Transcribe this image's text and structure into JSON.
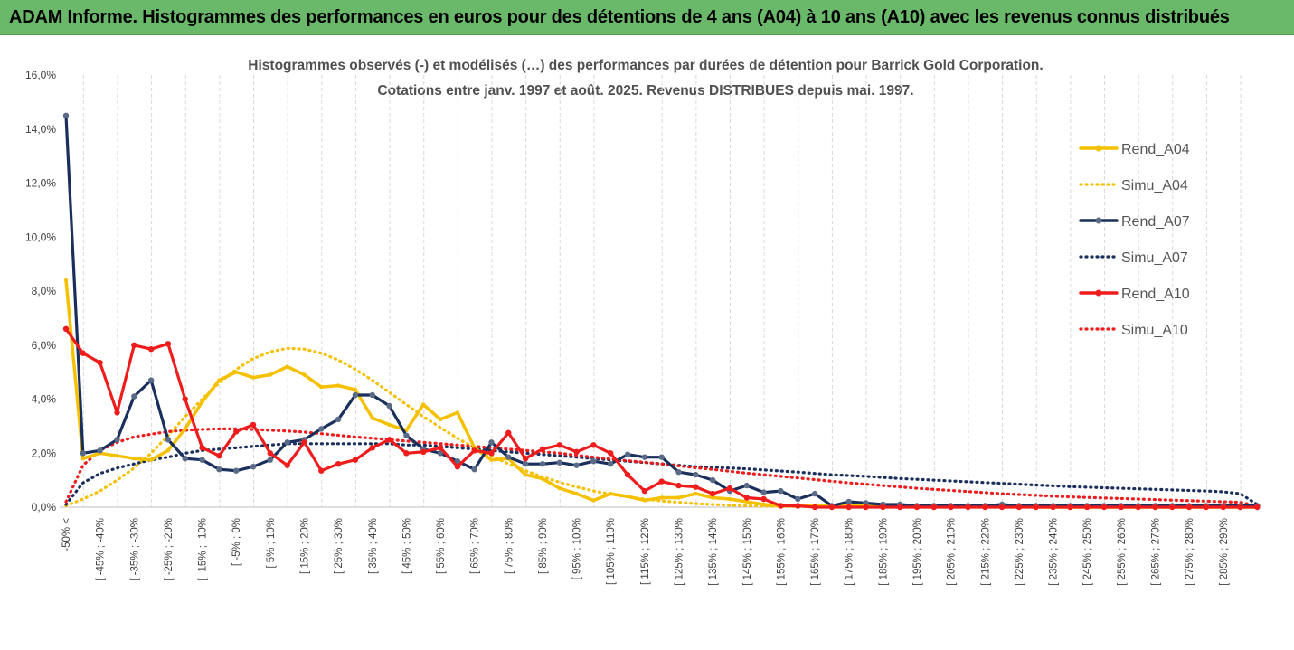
{
  "banner": {
    "title": "ADAM Informe. Histogrammes des performances en euros pour des détentions de 4 ans (A04) à 10 ans (A10) avec les revenus connus distribués"
  },
  "chart_data": {
    "type": "line",
    "title": "Histogrammes observés (-) et modélisés (…) des performances par durées de détention pour Barrick Gold Corporation.",
    "subtitle": "Cotations entre janv. 1997 et août. 2025. Revenus DISTRIBUES depuis mai. 1997.",
    "xlabel": "",
    "ylabel": "",
    "ylim": [
      0,
      16
    ],
    "y_ticks": [
      "0,0%",
      "2,0%",
      "4,0%",
      "6,0%",
      "8,0%",
      "10,0%",
      "12,0%",
      "14,0%",
      "16,0%"
    ],
    "grid": "vertical",
    "legend_position": "right",
    "x_labels": [
      "-50% <",
      "[ -45% ; -40%",
      "[ -35% ; -30%",
      "[ -25% ; -20%",
      "[ -15% ; -10%",
      "[ -5% ; 0%",
      "[ 5% ; 10%",
      "[ 15% ; 20%",
      "[ 25% ; 30%",
      "[ 35% ; 40%",
      "[ 45% ; 50%",
      "[ 55% ; 60%",
      "[ 65% ; 70%",
      "[ 75% ; 80%",
      "[ 85% ; 90%",
      "[ 95% ; 100%",
      "[ 105% ; 110%",
      "[ 115% ; 120%",
      "[ 125% ; 130%",
      "[ 135% ; 140%",
      "[ 145% ; 150%",
      "[ 155% ; 160%",
      "[ 165% ; 170%",
      "[ 175% ; 180%",
      "[ 185% ; 190%",
      "[ 195% ; 200%",
      "[ 205% ; 210%",
      "[ 215% ; 220%",
      "[ 225% ; 230%",
      "[ 235% ; 240%",
      "[ 245% ; 250%",
      "[ 255% ; 260%",
      "[ 265% ; 270%",
      "[ 275% ; 280%",
      "[ 285% ; 290%"
    ],
    "series": [
      {
        "name": "Rend_A04",
        "style": "solid",
        "color": "#f5c000",
        "values": [
          8.4,
          1.8,
          2.0,
          1.9,
          1.8,
          1.75,
          2.1,
          2.9,
          3.9,
          4.7,
          5.0,
          4.8,
          4.9,
          5.2,
          4.9,
          4.45,
          4.5,
          4.35,
          3.3,
          3.05,
          2.85,
          3.8,
          3.25,
          3.5,
          2.2,
          1.75,
          1.8,
          1.2,
          1.05,
          0.7,
          0.5,
          0.25,
          0.5,
          0.4,
          0.25,
          0.35,
          0.35,
          0.5,
          0.35,
          0.3,
          0.2,
          0.1,
          0.05,
          0.05,
          0.05,
          0.05,
          0.05,
          0.05,
          0.05,
          0.05,
          0.05,
          0.05,
          0.05,
          0.05,
          0.05,
          0.05,
          0.05,
          0.0,
          0.0,
          0.0,
          0.0,
          0.0,
          0.0,
          0.0,
          0.0,
          0.0,
          0.0,
          0.0,
          0.0,
          0.0,
          0.0
        ]
      },
      {
        "name": "Simu_A04",
        "style": "dotted",
        "color": "#f5c000",
        "values": [
          0.05,
          0.3,
          0.6,
          1.0,
          1.45,
          2.0,
          2.65,
          3.35,
          4.0,
          4.6,
          5.1,
          5.5,
          5.75,
          5.88,
          5.85,
          5.7,
          5.45,
          5.1,
          4.7,
          4.25,
          3.8,
          3.35,
          2.95,
          2.55,
          2.2,
          1.9,
          1.6,
          1.35,
          1.12,
          0.92,
          0.75,
          0.6,
          0.48,
          0.38,
          0.3,
          0.23,
          0.18,
          0.13,
          0.1,
          0.07,
          0.05,
          0.04,
          0.03,
          0.02,
          0.02,
          0.01,
          0.01,
          0.01,
          0.0,
          0.0,
          0.0,
          0.0,
          0.0,
          0.0,
          0.0,
          0.0,
          0.0,
          0.0,
          0.0,
          0.0,
          0.0,
          0.0,
          0.0,
          0.0,
          0.0,
          0.0,
          0.0,
          0.0,
          0.0,
          0.0,
          0.0
        ]
      },
      {
        "name": "Rend_A07",
        "style": "solid-markers",
        "color": "#1b2f5c",
        "values": [
          14.5,
          2.0,
          2.1,
          2.5,
          4.1,
          4.7,
          2.5,
          1.8,
          1.75,
          1.4,
          1.35,
          1.5,
          1.75,
          2.4,
          2.5,
          2.9,
          3.25,
          4.15,
          4.15,
          3.75,
          2.65,
          2.15,
          2.0,
          1.7,
          1.4,
          2.4,
          1.85,
          1.6,
          1.6,
          1.65,
          1.55,
          1.7,
          1.6,
          1.95,
          1.85,
          1.85,
          1.3,
          1.2,
          1.0,
          0.6,
          0.8,
          0.55,
          0.6,
          0.3,
          0.5,
          0.05,
          0.2,
          0.15,
          0.1,
          0.1,
          0.05,
          0.05,
          0.05,
          0.05,
          0.05,
          0.1,
          0.05,
          0.05,
          0.05,
          0.05,
          0.05,
          0.05,
          0.05,
          0.05,
          0.05,
          0.05,
          0.05,
          0.05,
          0.05,
          0.05,
          0.05
        ]
      },
      {
        "name": "Simu_A07",
        "style": "dotted",
        "color": "#1b2f5c",
        "values": [
          0.1,
          0.9,
          1.25,
          1.45,
          1.6,
          1.75,
          1.85,
          2.0,
          2.1,
          2.15,
          2.2,
          2.25,
          2.3,
          2.35,
          2.35,
          2.35,
          2.35,
          2.35,
          2.35,
          2.35,
          2.3,
          2.3,
          2.25,
          2.2,
          2.15,
          2.1,
          2.05,
          2.0,
          1.95,
          1.9,
          1.85,
          1.8,
          1.75,
          1.7,
          1.65,
          1.6,
          1.55,
          1.5,
          1.48,
          1.45,
          1.42,
          1.38,
          1.34,
          1.3,
          1.25,
          1.2,
          1.17,
          1.14,
          1.1,
          1.06,
          1.03,
          1.0,
          0.97,
          0.94,
          0.91,
          0.88,
          0.85,
          0.82,
          0.79,
          0.76,
          0.74,
          0.72,
          0.7,
          0.68,
          0.66,
          0.64,
          0.62,
          0.6,
          0.57,
          0.5,
          0.1
        ]
      },
      {
        "name": "Rend_A10",
        "style": "solid-markers",
        "color": "#ee1c1c",
        "values": [
          6.6,
          5.7,
          5.35,
          3.5,
          6.0,
          5.85,
          6.05,
          4.0,
          2.2,
          1.9,
          2.8,
          3.05,
          2.0,
          1.55,
          2.4,
          1.35,
          1.6,
          1.75,
          2.2,
          2.5,
          2.0,
          2.05,
          2.2,
          1.5,
          2.1,
          2.0,
          2.75,
          1.8,
          2.15,
          2.3,
          2.05,
          2.3,
          2.0,
          1.2,
          0.6,
          0.95,
          0.8,
          0.75,
          0.5,
          0.7,
          0.35,
          0.3,
          0.05,
          0.05,
          0.0,
          0.0,
          0.0,
          0.0,
          0.0,
          0.0,
          0.0,
          0.0,
          0.0,
          0.0,
          0.0,
          0.0,
          0.0,
          0.0,
          0.0,
          0.0,
          0.0,
          0.0,
          0.0,
          0.0,
          0.0,
          0.0,
          0.0,
          0.0,
          0.0,
          0.0,
          0.0
        ]
      },
      {
        "name": "Simu_A10",
        "style": "dotted",
        "color": "#ee1c1c",
        "values": [
          0.2,
          1.55,
          2.1,
          2.4,
          2.6,
          2.7,
          2.8,
          2.85,
          2.88,
          2.9,
          2.9,
          2.88,
          2.85,
          2.82,
          2.78,
          2.72,
          2.66,
          2.6,
          2.55,
          2.5,
          2.45,
          2.4,
          2.35,
          2.3,
          2.25,
          2.2,
          2.15,
          2.1,
          2.05,
          2.0,
          1.92,
          1.85,
          1.78,
          1.72,
          1.66,
          1.6,
          1.53,
          1.46,
          1.4,
          1.33,
          1.26,
          1.2,
          1.14,
          1.08,
          1.02,
          0.96,
          0.9,
          0.85,
          0.8,
          0.75,
          0.7,
          0.66,
          0.62,
          0.58,
          0.54,
          0.5,
          0.47,
          0.44,
          0.41,
          0.38,
          0.36,
          0.34,
          0.32,
          0.3,
          0.28,
          0.26,
          0.24,
          0.22,
          0.2,
          0.18,
          0.05
        ]
      }
    ]
  }
}
